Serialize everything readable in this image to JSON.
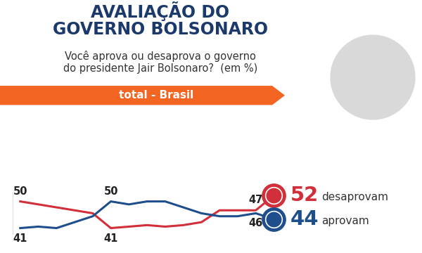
{
  "chart_data": {
    "type": "line",
    "title": "AVALIAÇÃO DO\nGOVERNO BOLSONARO",
    "subtitle": "Você aprova ou desaprova o governo\ndo presidente Jair Bolsonaro?  (em %)",
    "annotations": [
      "total - Brasil"
    ],
    "categories": [
      null,
      null,
      null,
      null,
      null,
      null,
      null,
      null,
      null,
      null,
      null,
      null,
      null,
      null,
      null
    ],
    "ylim": [
      39,
      53
    ],
    "tick_labels": false,
    "data_labels": true,
    "series": [
      {
        "name": "desaprovam",
        "color": "#d12f3a",
        "values": [
          50,
          49,
          48,
          47,
          46,
          41,
          41.5,
          42,
          41.5,
          42,
          43,
          47,
          47,
          47,
          52
        ],
        "value_labels": [
          "50",
          null,
          null,
          null,
          null,
          "41",
          null,
          null,
          null,
          null,
          null,
          null,
          null,
          "47",
          "52"
        ]
      },
      {
        "name": "aprovam",
        "color": "#1f4e8c",
        "values": [
          41,
          41.5,
          41,
          43,
          45,
          50,
          49,
          50,
          50,
          48,
          46,
          45,
          45,
          46,
          44
        ],
        "value_labels": [
          "41",
          null,
          null,
          null,
          null,
          "50",
          null,
          null,
          null,
          null,
          null,
          null,
          null,
          "46",
          "44"
        ]
      }
    ]
  }
}
